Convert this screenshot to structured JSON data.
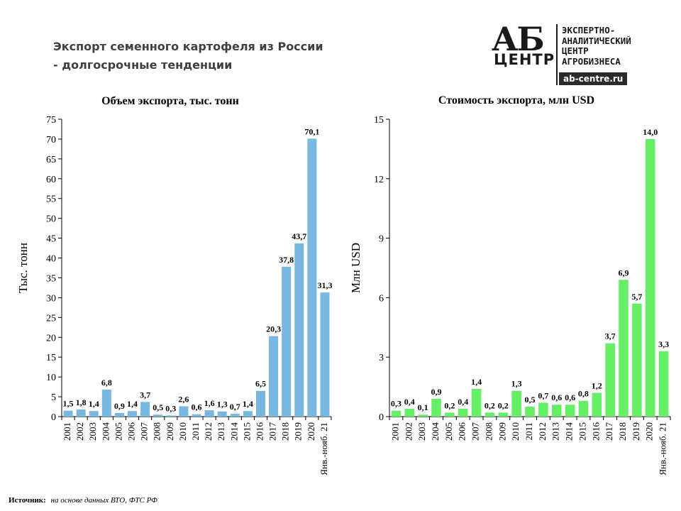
{
  "page": {
    "title_line1": "Экспорт семенного картофеля из России",
    "title_line2": "- долгосрочные  тенденции",
    "source_label": "Источник:",
    "source_text": "на основе данных ВТО,  ФТС РФ"
  },
  "logo": {
    "brand": "АБ",
    "brand_sub": "ЦЕНТР",
    "text_line1": "ЭКСПЕРТНО-",
    "text_line2": "АНАЛИТИЧЕСКИЙ",
    "text_line3": "ЦЕНТР",
    "text_line4": "АГРОБИЗНЕСА",
    "site": "ab-centre.ru"
  },
  "colors": {
    "left_bars": "#78b8e0",
    "right_bars": "#66ee66",
    "axis": "#000000"
  },
  "chart_data": [
    {
      "type": "bar",
      "title": "Объем экспорта, тыс. тонн",
      "ylabel": "Тыс. тонн",
      "xlabel": "",
      "ylim": [
        0,
        75
      ],
      "yticks": [
        0,
        5,
        10,
        15,
        20,
        25,
        30,
        35,
        40,
        45,
        50,
        55,
        60,
        65,
        70,
        75
      ],
      "grid": false,
      "categories": [
        "2001",
        "2002",
        "2003",
        "2004",
        "2005",
        "2006",
        "2007",
        "2008",
        "2009",
        "2010",
        "2011",
        "2012",
        "2013",
        "2014",
        "2015",
        "2016",
        "2017",
        "2018",
        "2019",
        "2020",
        "Янв.-нояб. 21"
      ],
      "values": [
        1.5,
        1.8,
        1.4,
        6.8,
        0.9,
        1.4,
        3.7,
        0.5,
        0.3,
        2.6,
        0.6,
        1.6,
        1.3,
        0.7,
        1.4,
        6.5,
        20.3,
        37.8,
        43.7,
        70.1,
        31.3
      ],
      "data_labels": [
        "1,5",
        "1,8",
        "1,4",
        "6,8",
        "0,9",
        "1,4",
        "3,7",
        "0,5",
        "0,3",
        "2,6",
        "0,6",
        "1,6",
        "1,3",
        "0,7",
        "1,4",
        "6,5",
        "20,3",
        "37,8",
        "43,7",
        "70,1",
        "31,3"
      ]
    },
    {
      "type": "bar",
      "title": "Стоимость экспорта, млн USD",
      "ylabel": "Млн USD",
      "xlabel": "",
      "ylim": [
        0,
        15
      ],
      "yticks": [
        0,
        3,
        6,
        9,
        12,
        15
      ],
      "grid": false,
      "categories": [
        "2001",
        "2002",
        "2003",
        "2004",
        "2005",
        "2006",
        "2007",
        "2008",
        "2009",
        "2010",
        "2011",
        "2012",
        "2013",
        "2014",
        "2015",
        "2016",
        "2017",
        "2018",
        "2019",
        "2020",
        "Янв.-нояб. 21"
      ],
      "values": [
        0.3,
        0.4,
        0.1,
        0.9,
        0.2,
        0.4,
        1.4,
        0.2,
        0.2,
        1.3,
        0.5,
        0.7,
        0.6,
        0.6,
        0.8,
        1.2,
        3.7,
        6.9,
        5.7,
        14.0,
        3.3
      ],
      "data_labels": [
        "0,3",
        "0,4",
        "0,1",
        "0,9",
        "0,2",
        "0,4",
        "1,4",
        "0,2",
        "0,2",
        "1,3",
        "0,5",
        "0,7",
        "0,6",
        "0,6",
        "0,8",
        "1,2",
        "3,7",
        "6,9",
        "5,7",
        "14,0",
        "3,3"
      ]
    }
  ]
}
